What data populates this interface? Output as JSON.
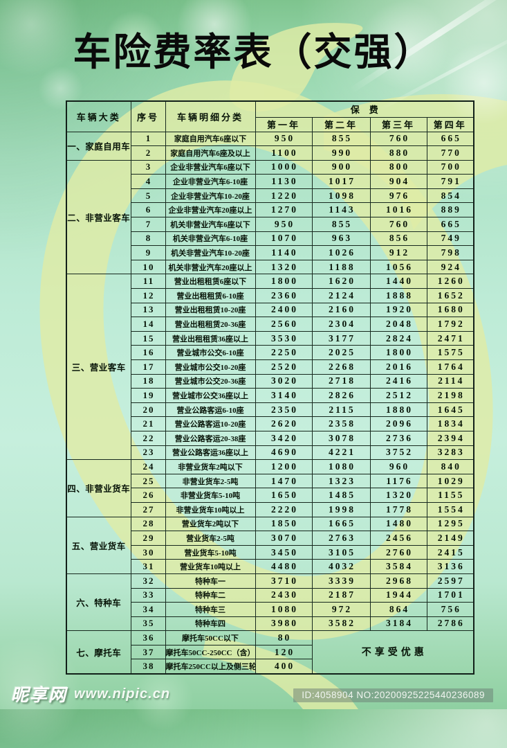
{
  "title": "车险费率表（交强）",
  "table": {
    "headers": {
      "category": "车辆大类",
      "serial": "序号",
      "detail": "车辆明细分类",
      "premium": "保费",
      "years": [
        "第一年",
        "第二年",
        "第三年",
        "第四年"
      ]
    },
    "no_discount": "不享受优惠",
    "groups": [
      {
        "category": "一、家庭自用车",
        "rows": [
          {
            "no": "1",
            "label": "家庭自用汽车6座以下",
            "values": [
              "950",
              "855",
              "760",
              "665"
            ]
          },
          {
            "no": "2",
            "label": "家庭自用汽车6座及以上",
            "values": [
              "1100",
              "990",
              "880",
              "770"
            ]
          }
        ]
      },
      {
        "category": "二、非营业客车",
        "rows": [
          {
            "no": "3",
            "label": "企业非营业汽车6座以下",
            "values": [
              "1000",
              "900",
              "800",
              "700"
            ]
          },
          {
            "no": "4",
            "label": "企业非营业汽车6-10座",
            "values": [
              "1130",
              "1017",
              "904",
              "791"
            ]
          },
          {
            "no": "5",
            "label": "企业非营业汽车10-20座",
            "values": [
              "1220",
              "1098",
              "976",
              "854"
            ]
          },
          {
            "no": "6",
            "label": "企业非营业汽车20座以上",
            "values": [
              "1270",
              "1143",
              "1016",
              "889"
            ]
          },
          {
            "no": "7",
            "label": "机关非营业汽车6座以下",
            "values": [
              "950",
              "855",
              "760",
              "665"
            ]
          },
          {
            "no": "8",
            "label": "机关非营业汽车6-10座",
            "values": [
              "1070",
              "963",
              "856",
              "749"
            ]
          },
          {
            "no": "9",
            "label": "机关非营业汽车10-20座",
            "values": [
              "1140",
              "1026",
              "912",
              "798"
            ]
          },
          {
            "no": "10",
            "label": "机关非营业汽车20座以上",
            "values": [
              "1320",
              "1188",
              "1056",
              "924"
            ]
          }
        ]
      },
      {
        "category": "三、营业客车",
        "rows": [
          {
            "no": "11",
            "label": "营业出租租赁6座以下",
            "values": [
              "1800",
              "1620",
              "1440",
              "1260"
            ]
          },
          {
            "no": "12",
            "label": "营业出租租赁6-10座",
            "values": [
              "2360",
              "2124",
              "1888",
              "1652"
            ]
          },
          {
            "no": "13",
            "label": "营业出租租赁10-20座",
            "values": [
              "2400",
              "2160",
              "1920",
              "1680"
            ]
          },
          {
            "no": "14",
            "label": "营业出租租赁20-36座",
            "values": [
              "2560",
              "2304",
              "2048",
              "1792"
            ]
          },
          {
            "no": "15",
            "label": "营业出租租赁36座以上",
            "values": [
              "3530",
              "3177",
              "2824",
              "2471"
            ]
          },
          {
            "no": "16",
            "label": "营业城市公交6-10座",
            "values": [
              "2250",
              "2025",
              "1800",
              "1575"
            ]
          },
          {
            "no": "17",
            "label": "营业城市公交10-20座",
            "values": [
              "2520",
              "2268",
              "2016",
              "1764"
            ]
          },
          {
            "no": "18",
            "label": "营业城市公交20-36座",
            "values": [
              "3020",
              "2718",
              "2416",
              "2114"
            ]
          },
          {
            "no": "19",
            "label": "营业城市公交36座以上",
            "values": [
              "3140",
              "2826",
              "2512",
              "2198"
            ]
          },
          {
            "no": "20",
            "label": "营业公路客运6-10座",
            "values": [
              "2350",
              "2115",
              "1880",
              "1645"
            ]
          },
          {
            "no": "21",
            "label": "营业公路客运10-20座",
            "values": [
              "2620",
              "2358",
              "2096",
              "1834"
            ]
          },
          {
            "no": "22",
            "label": "营业公路客运20-38座",
            "values": [
              "3420",
              "3078",
              "2736",
              "2394"
            ]
          },
          {
            "no": "23",
            "label": "营业公路客运36座以上",
            "values": [
              "4690",
              "4221",
              "3752",
              "3283"
            ]
          }
        ]
      },
      {
        "category": "四、非营业货车",
        "rows": [
          {
            "no": "24",
            "label": "非营业货车2吨以下",
            "values": [
              "1200",
              "1080",
              "960",
              "840"
            ]
          },
          {
            "no": "25",
            "label": "非营业货车2-5吨",
            "values": [
              "1470",
              "1323",
              "1176",
              "1029"
            ]
          },
          {
            "no": "26",
            "label": "非营业货车5-10吨",
            "values": [
              "1650",
              "1485",
              "1320",
              "1155"
            ]
          },
          {
            "no": "27",
            "label": "非营业货车10吨以上",
            "values": [
              "2220",
              "1998",
              "1778",
              "1554"
            ]
          }
        ]
      },
      {
        "category": "五、营业货车",
        "rows": [
          {
            "no": "28",
            "label": "营业货车2吨以下",
            "values": [
              "1850",
              "1665",
              "1480",
              "1295"
            ]
          },
          {
            "no": "29",
            "label": "营业货车2-5吨",
            "values": [
              "3070",
              "2763",
              "2456",
              "2149"
            ]
          },
          {
            "no": "30",
            "label": "营业货车5-10吨",
            "values": [
              "3450",
              "3105",
              "2760",
              "2415"
            ]
          },
          {
            "no": "31",
            "label": "营业货车10吨以上",
            "values": [
              "4480",
              "4032",
              "3584",
              "3136"
            ]
          }
        ]
      },
      {
        "category": "六、特种车",
        "rows": [
          {
            "no": "32",
            "label": "特种车一",
            "values": [
              "3710",
              "3339",
              "2968",
              "2597"
            ]
          },
          {
            "no": "33",
            "label": "特种车二",
            "values": [
              "2430",
              "2187",
              "1944",
              "1701"
            ]
          },
          {
            "no": "34",
            "label": "特种车三",
            "values": [
              "1080",
              "972",
              "864",
              "756"
            ]
          },
          {
            "no": "35",
            "label": "特种车四",
            "values": [
              "3980",
              "3582",
              "3184",
              "2786"
            ]
          }
        ]
      },
      {
        "category": "七、摩托车",
        "rows": [
          {
            "no": "36",
            "label": "摩托车50CC以下",
            "values": [
              "80"
            ]
          },
          {
            "no": "37",
            "label": "摩托车50CC-250CC（含）",
            "values": [
              "120"
            ]
          },
          {
            "no": "38",
            "label": "摩托车250CC以上及侧三轮",
            "values": [
              "400"
            ]
          }
        ]
      }
    ]
  },
  "watermark": {
    "site_name": "昵享网",
    "site_url": "www.nipic.cn",
    "id_text": "ID:4058904 NO:20200925225440236089"
  },
  "colors": {
    "ribbon": "#dfeca6",
    "table_border": "#16281e",
    "table_text": "#071307"
  }
}
